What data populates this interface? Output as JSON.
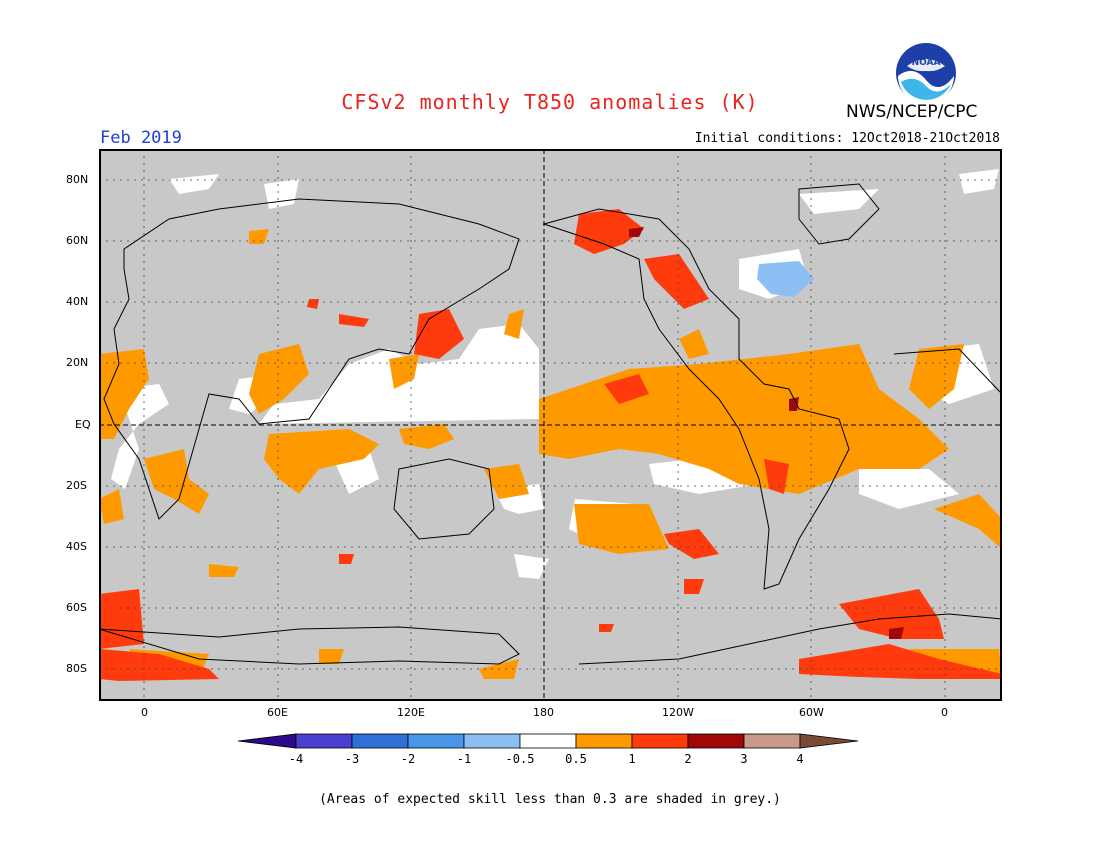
{
  "title": "CFSv2 monthly T850 anomalies (K)",
  "period": "Feb 2019",
  "initial_conditions": "Initial conditions: 12Oct2018-21Oct2018",
  "agency": "NWS/NCEP/CPC",
  "logo_text": "NOAA",
  "lat_labels": [
    "80N",
    "60N",
    "40N",
    "20N",
    "EQ",
    "20S",
    "40S",
    "60S",
    "80S"
  ],
  "lon_labels": [
    "0",
    "60E",
    "120E",
    "180",
    "120W",
    "60W",
    "0"
  ],
  "colorbar": {
    "labels": [
      "-4",
      "-3",
      "-2",
      "-1",
      "-0.5",
      "0.5",
      "1",
      "2",
      "3",
      "4"
    ],
    "colors": [
      "#2b0a8c",
      "#4b3fd0",
      "#2f6fd8",
      "#4a97ea",
      "#8cc0f4",
      "#ffffff",
      "#ff9900",
      "#ff3b0e",
      "#a00808",
      "#c9998a",
      "#7a4a35"
    ]
  },
  "legend_colors": {
    "low_skill": "#c8c8c8",
    "near_normal": "#ffffff",
    "warm_0_5_1": "#ff9900",
    "warm_1_2": "#ff3b0e",
    "warm_2_3": "#a00808",
    "cool_neg1_neg0_5": "#8cc0f4"
  },
  "footnote": "(Areas of expected skill less than 0.3 are shaded in grey.)"
}
